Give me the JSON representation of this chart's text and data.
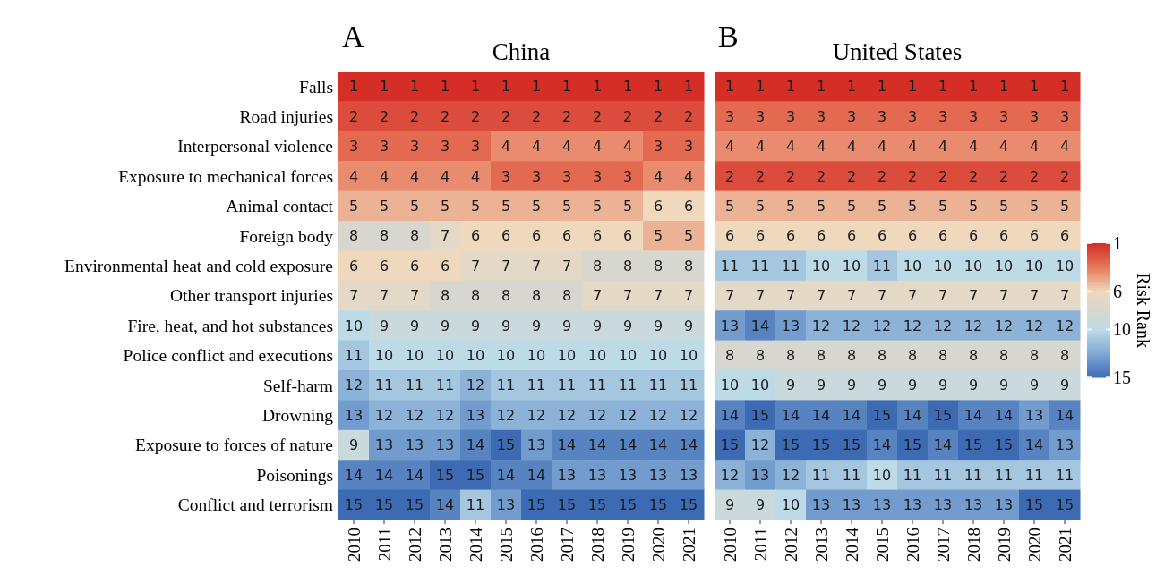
{
  "chart_data": [
    {
      "type": "heatmap",
      "title": "China",
      "annotations": [
        "A"
      ],
      "categories": [
        "2010",
        "2011",
        "2012",
        "2013",
        "2014",
        "2015",
        "2016",
        "2017",
        "2018",
        "2019",
        "2020",
        "2021"
      ],
      "y_categories": [
        "Falls",
        "Road injuries",
        "Interpersonal violence",
        "Exposure to mechanical forces",
        "Animal contact",
        "Foreign body",
        "Environmental heat and cold exposure",
        "Other transport injuries",
        "Fire, heat, and hot substances",
        "Police conflict and executions",
        "Self-harm",
        "Drowning",
        "Exposure to forces of nature",
        "Poisonings",
        "Conflict and terrorism"
      ],
      "cells": [
        [
          1,
          1,
          1,
          1,
          1,
          1,
          1,
          1,
          1,
          1,
          1,
          1
        ],
        [
          2,
          2,
          2,
          2,
          2,
          2,
          2,
          2,
          2,
          2,
          2,
          2
        ],
        [
          3,
          3,
          3,
          3,
          3,
          4,
          4,
          4,
          4,
          4,
          3,
          3
        ],
        [
          4,
          4,
          4,
          4,
          4,
          3,
          3,
          3,
          3,
          3,
          4,
          4
        ],
        [
          5,
          5,
          5,
          5,
          5,
          5,
          5,
          5,
          5,
          5,
          6,
          6
        ],
        [
          8,
          8,
          8,
          7,
          6,
          6,
          6,
          6,
          6,
          6,
          5,
          5
        ],
        [
          6,
          6,
          6,
          6,
          7,
          7,
          7,
          7,
          8,
          8,
          8,
          8
        ],
        [
          7,
          7,
          7,
          8,
          8,
          8,
          8,
          8,
          7,
          7,
          7,
          7
        ],
        [
          10,
          9,
          9,
          9,
          9,
          9,
          9,
          9,
          9,
          9,
          9,
          9
        ],
        [
          11,
          10,
          10,
          10,
          10,
          10,
          10,
          10,
          10,
          10,
          10,
          10
        ],
        [
          12,
          11,
          11,
          11,
          12,
          11,
          11,
          11,
          11,
          11,
          11,
          11
        ],
        [
          13,
          12,
          12,
          12,
          13,
          12,
          12,
          12,
          12,
          12,
          12,
          12
        ],
        [
          9,
          13,
          13,
          13,
          14,
          15,
          13,
          14,
          14,
          14,
          14,
          14
        ],
        [
          14,
          14,
          14,
          15,
          15,
          14,
          14,
          13,
          13,
          13,
          13,
          13
        ],
        [
          15,
          15,
          15,
          14,
          11,
          13,
          15,
          15,
          15,
          15,
          15,
          15
        ]
      ],
      "data_labels": true
    },
    {
      "type": "heatmap",
      "title": "United States",
      "annotations": [
        "B"
      ],
      "categories": [
        "2010",
        "2011",
        "2012",
        "2013",
        "2014",
        "2015",
        "2016",
        "2017",
        "2018",
        "2019",
        "2020",
        "2021"
      ],
      "y_categories": [
        "Falls",
        "Road injuries",
        "Interpersonal violence",
        "Exposure to mechanical forces",
        "Animal contact",
        "Foreign body",
        "Environmental heat and cold exposure",
        "Other transport injuries",
        "Fire, heat, and hot substances",
        "Police conflict and executions",
        "Self-harm",
        "Drowning",
        "Exposure to forces of nature",
        "Poisonings",
        "Conflict and terrorism"
      ],
      "cells": [
        [
          1,
          1,
          1,
          1,
          1,
          1,
          1,
          1,
          1,
          1,
          1,
          1
        ],
        [
          3,
          3,
          3,
          3,
          3,
          3,
          3,
          3,
          3,
          3,
          3,
          3
        ],
        [
          4,
          4,
          4,
          4,
          4,
          4,
          4,
          4,
          4,
          4,
          4,
          4
        ],
        [
          2,
          2,
          2,
          2,
          2,
          2,
          2,
          2,
          2,
          2,
          2,
          2
        ],
        [
          5,
          5,
          5,
          5,
          5,
          5,
          5,
          5,
          5,
          5,
          5,
          5
        ],
        [
          6,
          6,
          6,
          6,
          6,
          6,
          6,
          6,
          6,
          6,
          6,
          6
        ],
        [
          11,
          11,
          11,
          10,
          10,
          11,
          10,
          10,
          10,
          10,
          10,
          10
        ],
        [
          7,
          7,
          7,
          7,
          7,
          7,
          7,
          7,
          7,
          7,
          7,
          7
        ],
        [
          13,
          14,
          13,
          12,
          12,
          12,
          12,
          12,
          12,
          12,
          12,
          12
        ],
        [
          8,
          8,
          8,
          8,
          8,
          8,
          8,
          8,
          8,
          8,
          8,
          8
        ],
        [
          10,
          10,
          9,
          9,
          9,
          9,
          9,
          9,
          9,
          9,
          9,
          9
        ],
        [
          14,
          15,
          14,
          14,
          14,
          15,
          14,
          15,
          14,
          14,
          13,
          14
        ],
        [
          15,
          12,
          15,
          15,
          15,
          14,
          15,
          14,
          15,
          15,
          14,
          13
        ],
        [
          12,
          13,
          12,
          11,
          11,
          10,
          11,
          11,
          11,
          11,
          11,
          11
        ],
        [
          9,
          9,
          10,
          13,
          13,
          13,
          13,
          13,
          13,
          13,
          15,
          15
        ]
      ],
      "data_labels": true,
      "tick_labels": "x",
      "clim": [
        15,
        1
      ],
      "cticks": [
        1,
        6,
        10,
        15
      ],
      "clabel": "Risk Rank"
    }
  ]
}
